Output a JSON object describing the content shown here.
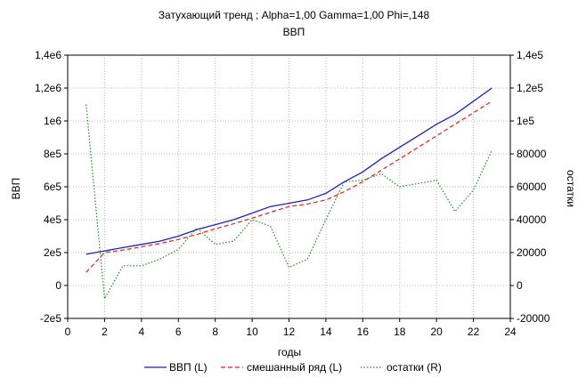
{
  "chart_data": {
    "type": "line",
    "title": "Затухающий тренд ; Alpha=1,00 Gamma=1,00 Phi=,148",
    "subtitle": "ВВП",
    "xlabel": "годы",
    "ylabel_left": "ВВП",
    "ylabel_right": "остатки",
    "xlim": [
      0,
      24
    ],
    "ylim_left": [
      -200000,
      1400000
    ],
    "ylim_right": [
      -20000,
      140000
    ],
    "x_ticks": [
      "0",
      "2",
      "4",
      "6",
      "8",
      "10",
      "12",
      "14",
      "16",
      "18",
      "20",
      "22",
      "24"
    ],
    "y_ticks_left": [
      "-2e5",
      "0",
      "2e5",
      "4e5",
      "6e5",
      "8e5",
      "1e6",
      "1,2e6",
      "1,4e6"
    ],
    "y_ticks_right": [
      "-20000",
      "0",
      "20000",
      "40000",
      "60000",
      "80000",
      "1e5",
      "1,2e5",
      "1,4e5"
    ],
    "grid": true,
    "legend_position": "bottom",
    "series": [
      {
        "name": "ВВП (L)",
        "axis": "left",
        "color": "#1f1fbf",
        "style": "solid",
        "x": [
          1,
          2,
          3,
          4,
          5,
          6,
          7,
          8,
          9,
          10,
          11,
          12,
          13,
          14,
          15,
          16,
          17,
          18,
          19,
          20,
          21,
          22,
          23
        ],
        "values": [
          190000,
          210000,
          230000,
          250000,
          270000,
          300000,
          340000,
          370000,
          400000,
          440000,
          480000,
          500000,
          520000,
          560000,
          630000,
          690000,
          770000,
          840000,
          910000,
          980000,
          1040000,
          1120000,
          1200000
        ]
      },
      {
        "name": "смешанный ряд (L)",
        "axis": "left",
        "color": "#e02020",
        "style": "dashed",
        "x": [
          1,
          2,
          3,
          4,
          5,
          6,
          7,
          8,
          9,
          10,
          11,
          12,
          13,
          14,
          15,
          16,
          17,
          18,
          19,
          20,
          21,
          22,
          23
        ],
        "values": [
          80000,
          200000,
          215000,
          235000,
          255000,
          280000,
          310000,
          345000,
          375000,
          410000,
          445000,
          480000,
          495000,
          520000,
          570000,
          630000,
          700000,
          770000,
          840000,
          910000,
          980000,
          1050000,
          1120000
        ]
      },
      {
        "name": "остатки (R)",
        "axis": "right",
        "color": "#228b22",
        "style": "dotted",
        "x": [
          1,
          2,
          3,
          4,
          5,
          6,
          7,
          8,
          9,
          10,
          11,
          12,
          13,
          14,
          15,
          16,
          17,
          18,
          19,
          20,
          21,
          22,
          23
        ],
        "values": [
          110000,
          -8000,
          12000,
          12000,
          16000,
          22000,
          35000,
          25000,
          27000,
          40000,
          36000,
          11000,
          16000,
          40000,
          63000,
          64000,
          68000,
          60000,
          62000,
          64000,
          45000,
          58000,
          82000
        ]
      }
    ]
  }
}
